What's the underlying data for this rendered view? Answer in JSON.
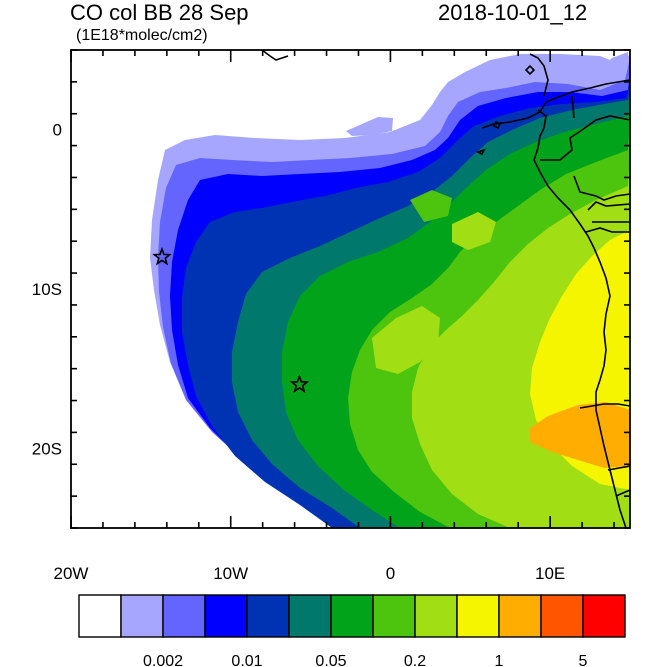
{
  "header": {
    "title_left": "CO col BB 28 Sep",
    "title_right": "2018-10-01_12",
    "units": "(1E18*molec/cm2)"
  },
  "axes": {
    "lon_ticks": [
      {
        "lon": -20,
        "label": "20W"
      },
      {
        "lon": -10,
        "label": "10W"
      },
      {
        "lon": 0,
        "label": "0"
      },
      {
        "lon": 10,
        "label": "10E"
      }
    ],
    "lat_ticks": [
      {
        "lat": 0,
        "label": "0"
      },
      {
        "lat": -10,
        "label": "10S"
      },
      {
        "lat": -20,
        "label": "20S"
      }
    ],
    "lon_range": [
      -20,
      15
    ],
    "lat_range": [
      -25,
      5
    ]
  },
  "markers": [
    {
      "name": "star-marker-north",
      "lon": -14.3,
      "lat": -8.0
    },
    {
      "name": "star-marker-south",
      "lon": -5.7,
      "lat": -16.0
    }
  ],
  "colorbar": {
    "colors": [
      "#ffffff",
      "#a6a6ff",
      "#6464ff",
      "#0000ff",
      "#0033b3",
      "#00786b",
      "#00a31a",
      "#4dc40d",
      "#a1df14",
      "#f5f500",
      "#ffad00",
      "#ff5500",
      "#ff0000"
    ],
    "labels": [
      {
        "after_box": 2,
        "text": "0.002"
      },
      {
        "after_box": 4,
        "text": "0.01"
      },
      {
        "after_box": 6,
        "text": "0.05"
      },
      {
        "after_box": 8,
        "text": "0.2"
      },
      {
        "after_box": 10,
        "text": "1"
      },
      {
        "after_box": 12,
        "text": "5"
      }
    ]
  }
}
